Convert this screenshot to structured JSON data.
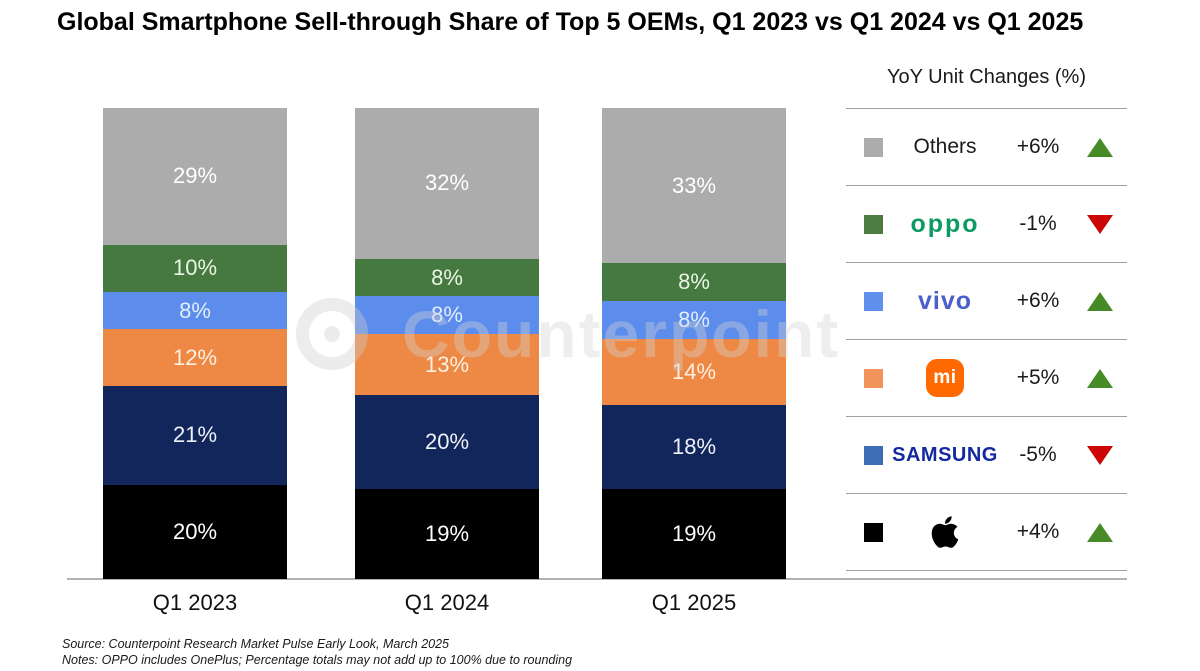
{
  "title": "Global Smartphone Sell-through Share of Top 5 OEMs, Q1 2023 vs Q1 2024 vs Q1 2025",
  "watermark": {
    "text": "Counterpoint"
  },
  "chart_data": {
    "type": "bar",
    "stacked": true,
    "title": "Global Smartphone Sell-through Share of Top 5 OEMs, Q1 2023 vs Q1 2024 vs Q1 2025",
    "unit": "%",
    "ylim": [
      0,
      100
    ],
    "grid": false,
    "legend_position": "right",
    "categories": [
      "Q1 2023",
      "Q1 2024",
      "Q1 2025"
    ],
    "series": [
      {
        "name": "Others",
        "color": "#acacac",
        "label_color": "#ffffff",
        "values": [
          29,
          32,
          33
        ]
      },
      {
        "name": "OPPO",
        "color": "#45793f",
        "label_color": "#eaf5e6",
        "values": [
          10,
          8,
          8
        ]
      },
      {
        "name": "vivo",
        "color": "#5c8cec",
        "label_color": "#e3edfd",
        "values": [
          8,
          8,
          8
        ]
      },
      {
        "name": "Xiaomi",
        "color": "#ee8945",
        "label_color": "#fdf0e2",
        "values": [
          12,
          13,
          14
        ]
      },
      {
        "name": "Samsung",
        "color": "#13265c",
        "label_color": "#eef1f8",
        "values": [
          21,
          20,
          18
        ]
      },
      {
        "name": "Apple",
        "color": "#000000",
        "label_color": "#ffffff",
        "values": [
          20,
          19,
          19
        ]
      }
    ]
  },
  "legend": {
    "title": "YoY Unit Changes (%)",
    "up_color": "#478a28",
    "down_color": "#cc0606",
    "rows": [
      {
        "id": "others",
        "logo": "text",
        "logo_text": "Others",
        "swatch": "#acacac",
        "change": "+6%",
        "direction": "up"
      },
      {
        "id": "oppo",
        "logo": "oppo",
        "logo_text": "oppo",
        "swatch": "#4c7c42",
        "change": "-1%",
        "direction": "down"
      },
      {
        "id": "vivo",
        "logo": "vivo",
        "logo_text": "vivo",
        "swatch": "#6090ee",
        "change": "+6%",
        "direction": "up"
      },
      {
        "id": "xiaomi",
        "logo": "mi",
        "logo_text": "mi",
        "swatch": "#f0945c",
        "change": "+5%",
        "direction": "up"
      },
      {
        "id": "samsung",
        "logo": "samsung",
        "logo_text": "SAMSUNG",
        "swatch": "#3d6db5",
        "change": "-5%",
        "direction": "down"
      },
      {
        "id": "apple",
        "logo": "apple",
        "logo_text": "",
        "swatch": "#000000",
        "change": "+4%",
        "direction": "up"
      }
    ]
  },
  "source_line": "Source: Counterpoint Research Market Pulse Early Look, March 2025",
  "notes_line": "Notes: OPPO includes OnePlus; Percentage totals may not add up to 100% due to rounding"
}
